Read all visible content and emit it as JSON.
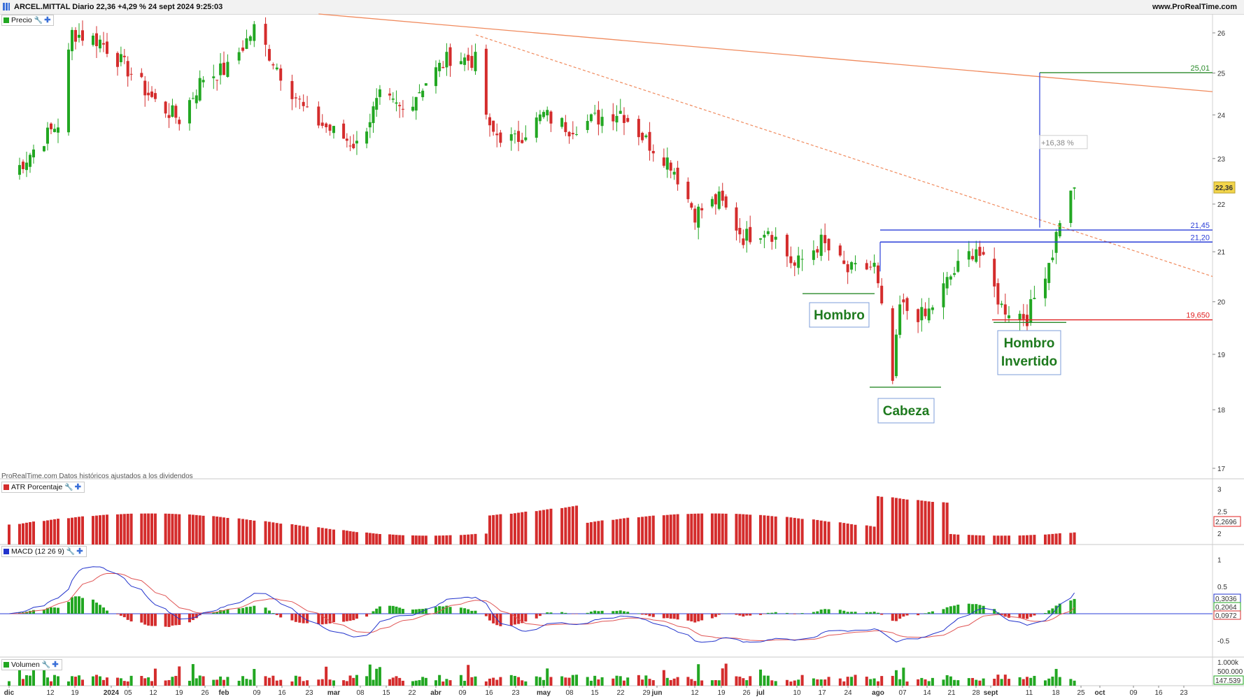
{
  "header": {
    "title": "ARCEL.MITTAL Diario 22,36 +4,29 % 24 sept 2024 9:25:03",
    "site": "www.ProRealTime.com"
  },
  "panels": {
    "price_label": "Precio",
    "atr_label": "ATR Porcentaje",
    "macd_label": "MACD (12 26 9)",
    "volume_label": "Volumen"
  },
  "note": "ProRealTime.com Datos históricos ajustados a los dividendos",
  "colors": {
    "bullish": "#22a722",
    "bearish": "#d42c2c",
    "macd_line": "#2233cc",
    "signal_line": "#e05555",
    "trendline": "#f08a5d",
    "level_blue": "#2a3ed8",
    "target_green": "#2a8a2a",
    "stop_red": "#e02020"
  },
  "icons": [
    "wrench-icon",
    "plus-icon"
  ],
  "chart_data": [
    {
      "type": "candlestick",
      "title": "ARCEL.MITTAL Diario",
      "x_tick_labels": [
        "dic",
        "12",
        "19",
        "2024",
        "05",
        "12",
        "19",
        "26",
        "feb",
        "09",
        "16",
        "23",
        "mar",
        "08",
        "15",
        "22",
        "abr",
        "09",
        "16",
        "23",
        "may",
        "08",
        "15",
        "22",
        "29",
        "jun",
        "12",
        "19",
        "26",
        "jul",
        "10",
        "17",
        "24",
        "ago",
        "07",
        "14",
        "21",
        "28",
        "sept",
        "11",
        "18",
        "25",
        "oct",
        "09",
        "16",
        "23"
      ],
      "y_tick_labels": [
        "17",
        "18",
        "19",
        "20",
        "21",
        "22",
        "23",
        "24",
        "25",
        "26"
      ],
      "ylim": [
        16.8,
        26.3
      ],
      "grid": false,
      "close_series": [
        {
          "date": "2023-12-01",
          "close": 22.55
        },
        {
          "date": "2023-12-08",
          "close": 23.2
        },
        {
          "date": "2023-12-15",
          "close": 23.8
        },
        {
          "date": "2023-12-19",
          "close": 26.0
        },
        {
          "date": "2023-12-27",
          "close": 25.8
        },
        {
          "date": "2024-01-05",
          "close": 25.0
        },
        {
          "date": "2024-01-12",
          "close": 24.3
        },
        {
          "date": "2024-01-19",
          "close": 23.9
        },
        {
          "date": "2024-01-26",
          "close": 24.9
        },
        {
          "date": "2024-02-02",
          "close": 25.1
        },
        {
          "date": "2024-02-09",
          "close": 26.1
        },
        {
          "date": "2024-02-16",
          "close": 25.0
        },
        {
          "date": "2024-02-23",
          "close": 24.0
        },
        {
          "date": "2024-03-01",
          "close": 23.6
        },
        {
          "date": "2024-03-08",
          "close": 23.3
        },
        {
          "date": "2024-03-15",
          "close": 24.4
        },
        {
          "date": "2024-03-22",
          "close": 24.1
        },
        {
          "date": "2024-03-29",
          "close": 24.8
        },
        {
          "date": "2024-04-05",
          "close": 25.4
        },
        {
          "date": "2024-04-12",
          "close": 25.3
        },
        {
          "date": "2024-04-16",
          "close": 23.6
        },
        {
          "date": "2024-04-23",
          "close": 23.4
        },
        {
          "date": "2024-05-01",
          "close": 24.0
        },
        {
          "date": "2024-05-08",
          "close": 23.7
        },
        {
          "date": "2024-05-15",
          "close": 23.9
        },
        {
          "date": "2024-05-22",
          "close": 24.1
        },
        {
          "date": "2024-05-29",
          "close": 23.4
        },
        {
          "date": "2024-06-05",
          "close": 22.9
        },
        {
          "date": "2024-06-12",
          "close": 21.8
        },
        {
          "date": "2024-06-19",
          "close": 22.1
        },
        {
          "date": "2024-06-26",
          "close": 21.3
        },
        {
          "date": "2024-07-03",
          "close": 21.5
        },
        {
          "date": "2024-07-10",
          "close": 20.7
        },
        {
          "date": "2024-07-17",
          "close": 21.2
        },
        {
          "date": "2024-07-24",
          "close": 20.6
        },
        {
          "date": "2024-07-31",
          "close": 20.7
        },
        {
          "date": "2024-08-05",
          "close": 18.5
        },
        {
          "date": "2024-08-07",
          "close": 19.9
        },
        {
          "date": "2024-08-14",
          "close": 19.7
        },
        {
          "date": "2024-08-21",
          "close": 20.5
        },
        {
          "date": "2024-08-28",
          "close": 21.1
        },
        {
          "date": "2024-09-04",
          "close": 19.9
        },
        {
          "date": "2024-09-11",
          "close": 19.7
        },
        {
          "date": "2024-09-18",
          "close": 21.0
        },
        {
          "date": "2024-09-20",
          "close": 21.7
        },
        {
          "date": "2024-09-24",
          "close": 22.36
        }
      ],
      "levels": [
        {
          "label": "25,01",
          "value": 25.01,
          "color": "#2a8a2a"
        },
        {
          "label": "21,45",
          "value": 21.45,
          "color": "#2a3ed8"
        },
        {
          "label": "21,20",
          "value": 21.2,
          "color": "#2a3ed8"
        },
        {
          "label": "19,650",
          "value": 19.65,
          "color": "#e02020"
        }
      ],
      "last_price_tag": "22,36",
      "measure_label": "+16,38 %",
      "annotations": [
        "Hombro",
        "Cabeza",
        "Hombro Invertido"
      ]
    },
    {
      "type": "bar",
      "title": "ATR Porcentaje",
      "y_tick_labels": [
        "2",
        "2.5",
        "3"
      ],
      "last_value_tag": "2,2696",
      "ylim": [
        1.75,
        3.2
      ]
    },
    {
      "type": "line",
      "title": "MACD (12 26 9)",
      "y_tick_labels": [
        "1",
        "0.5",
        "-0.5"
      ],
      "ylim": [
        -0.8,
        1.25
      ],
      "value_tags": [
        {
          "series": "MACD",
          "value": "0,3036"
        },
        {
          "series": "Signal",
          "value": "0,2064"
        },
        {
          "series": "Histogram",
          "value": "0,0972"
        }
      ]
    },
    {
      "type": "bar",
      "title": "Volumen",
      "y_tick_labels": [
        "1.000k",
        "500.000"
      ],
      "last_value_tag": "147.539"
    }
  ]
}
